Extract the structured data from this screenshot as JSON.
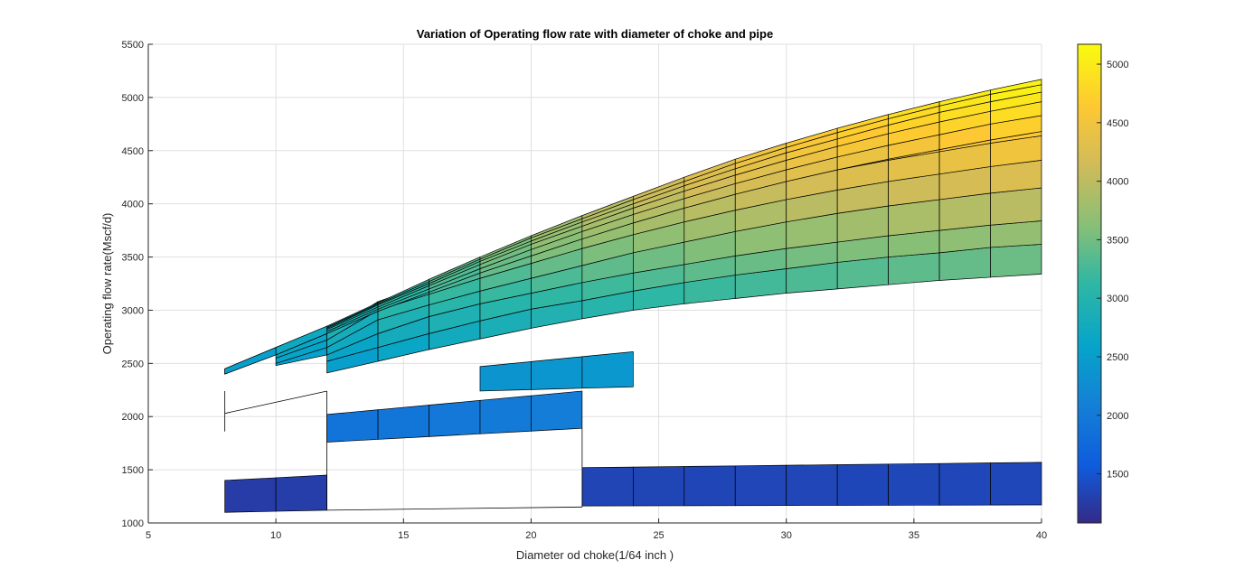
{
  "chart_data": {
    "type": "surface",
    "title": "Variation of Operating flow rate with diameter of choke and pipe",
    "xlabel": "Diameter od choke(1/64 inch )",
    "ylabel": "Operating flow rate(Mscf/d)",
    "xlim": [
      5,
      40
    ],
    "ylim": [
      1000,
      5500
    ],
    "x_ticks": [
      "5",
      "10",
      "15",
      "20",
      "25",
      "30",
      "35",
      "40"
    ],
    "y_ticks": [
      "1000",
      "1500",
      "2000",
      "2500",
      "3000",
      "3500",
      "4000",
      "4500",
      "5000",
      "5500"
    ],
    "grid": true,
    "colormap": "parula",
    "colorbar": {
      "range": [
        1080,
        5170
      ],
      "ticks": [
        "1500",
        "2000",
        "2500",
        "3000",
        "3500",
        "4000",
        "4500",
        "5000"
      ]
    },
    "x": [
      8,
      10,
      12,
      14,
      16,
      18,
      20,
      22,
      24,
      26,
      28,
      30,
      32,
      34,
      36,
      38,
      40
    ],
    "top_curves": [
      [
        2450,
        2650,
        2850,
        3070,
        3290,
        3500,
        3700,
        3890,
        4070,
        4250,
        4420,
        4570,
        4710,
        4840,
        4960,
        5070,
        5170
      ],
      [
        2440,
        2640,
        2840,
        3060,
        3270,
        3480,
        3680,
        3860,
        4040,
        4210,
        4380,
        4530,
        4670,
        4800,
        4920,
        5030,
        5120
      ],
      [
        2430,
        2630,
        2830,
        3050,
        3250,
        3460,
        3650,
        3830,
        4000,
        4170,
        4330,
        4480,
        4610,
        4740,
        4860,
        4960,
        5050
      ],
      [
        2420,
        2620,
        2820,
        3030,
        3230,
        3430,
        3620,
        3790,
        3960,
        4120,
        4270,
        4410,
        4540,
        4660,
        4770,
        4870,
        4960
      ],
      [
        2410,
        2600,
        2800,
        3010,
        3200,
        3390,
        3570,
        3740,
        3900,
        4050,
        4190,
        4320,
        4440,
        4550,
        4650,
        4750,
        4830
      ],
      [
        2400,
        2580,
        2780,
        2990,
        3170,
        3350,
        3510,
        3670,
        3820,
        3960,
        4090,
        4210,
        4320,
        4420,
        4510,
        4600,
        4680
      ]
    ],
    "mid_curves": [
      [
        null,
        2600,
        2780,
        3080,
        3250,
        3410,
        3570,
        3720,
        3860,
        3990,
        4110,
        4220,
        4320,
        4410,
        4490,
        4570,
        4640
      ],
      [
        null,
        2550,
        2720,
        3000,
        3150,
        3300,
        3440,
        3580,
        3710,
        3830,
        3940,
        4040,
        4130,
        4210,
        4280,
        4350,
        4410
      ],
      [
        null,
        2500,
        2650,
        2910,
        3050,
        3180,
        3300,
        3420,
        3540,
        3640,
        3740,
        3830,
        3910,
        3980,
        4040,
        4100,
        4150
      ],
      [
        null,
        2480,
        2580,
        2780,
        2940,
        3060,
        3160,
        3260,
        3350,
        3430,
        3510,
        3580,
        3640,
        3700,
        3750,
        3800,
        3840
      ],
      [
        null,
        null,
        2520,
        2650,
        2780,
        2900,
        3010,
        3090,
        3180,
        3260,
        3330,
        3390,
        3450,
        3500,
        3540,
        3590,
        3620
      ],
      [
        null,
        null,
        2410,
        2520,
        2630,
        2730,
        2830,
        2920,
        3000,
        3060,
        3110,
        3160,
        3200,
        3240,
        3280,
        3310,
        3340
      ]
    ],
    "bottom_bands": [
      {
        "x": [
          8,
          12
        ],
        "low": [
          1100,
          1120
        ],
        "high": [
          1400,
          1450
        ]
      },
      {
        "x": [
          12,
          22
        ],
        "low": [
          1760,
          1890
        ],
        "high": [
          2020,
          2240
        ]
      },
      {
        "x": [
          18,
          24
        ],
        "low": [
          2240,
          2280
        ],
        "high": [
          2470,
          2610
        ]
      },
      {
        "x": [
          22,
          40
        ],
        "low": [
          1160,
          1170
        ],
        "high": [
          1520,
          1570
        ]
      }
    ]
  }
}
